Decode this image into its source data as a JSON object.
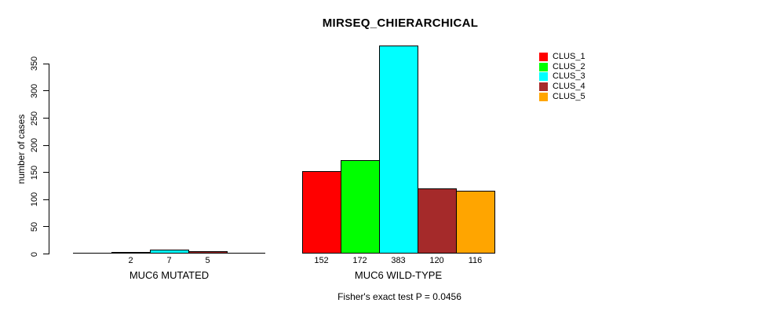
{
  "chart_data": {
    "type": "bar",
    "title": "MIRSEQ_CHIERARCHICAL",
    "ylabel": "number of cases",
    "xlabel": "",
    "yticks": [
      0,
      50,
      100,
      150,
      200,
      250,
      300,
      350
    ],
    "ylim": [
      0,
      383
    ],
    "grid": false,
    "legend_position": "top-right",
    "bar_value_labels": "shown below bars, hidden for zero values",
    "clusters": [
      {
        "name": "CLUS_1",
        "color": "#FF0000"
      },
      {
        "name": "CLUS_2",
        "color": "#00FF00"
      },
      {
        "name": "CLUS_3",
        "color": "#00FFFF"
      },
      {
        "name": "CLUS_4",
        "color": "#A52A2A"
      },
      {
        "name": "CLUS_5",
        "color": "#FFA500"
      }
    ],
    "groups": [
      {
        "label": "MUC6 MUTATED",
        "values": [
          0,
          2,
          7,
          5,
          0
        ]
      },
      {
        "label": "MUC6 WILD-TYPE",
        "values": [
          152,
          172,
          383,
          120,
          116
        ]
      }
    ],
    "annotation": "Fisher's exact test P = 0.0456"
  }
}
